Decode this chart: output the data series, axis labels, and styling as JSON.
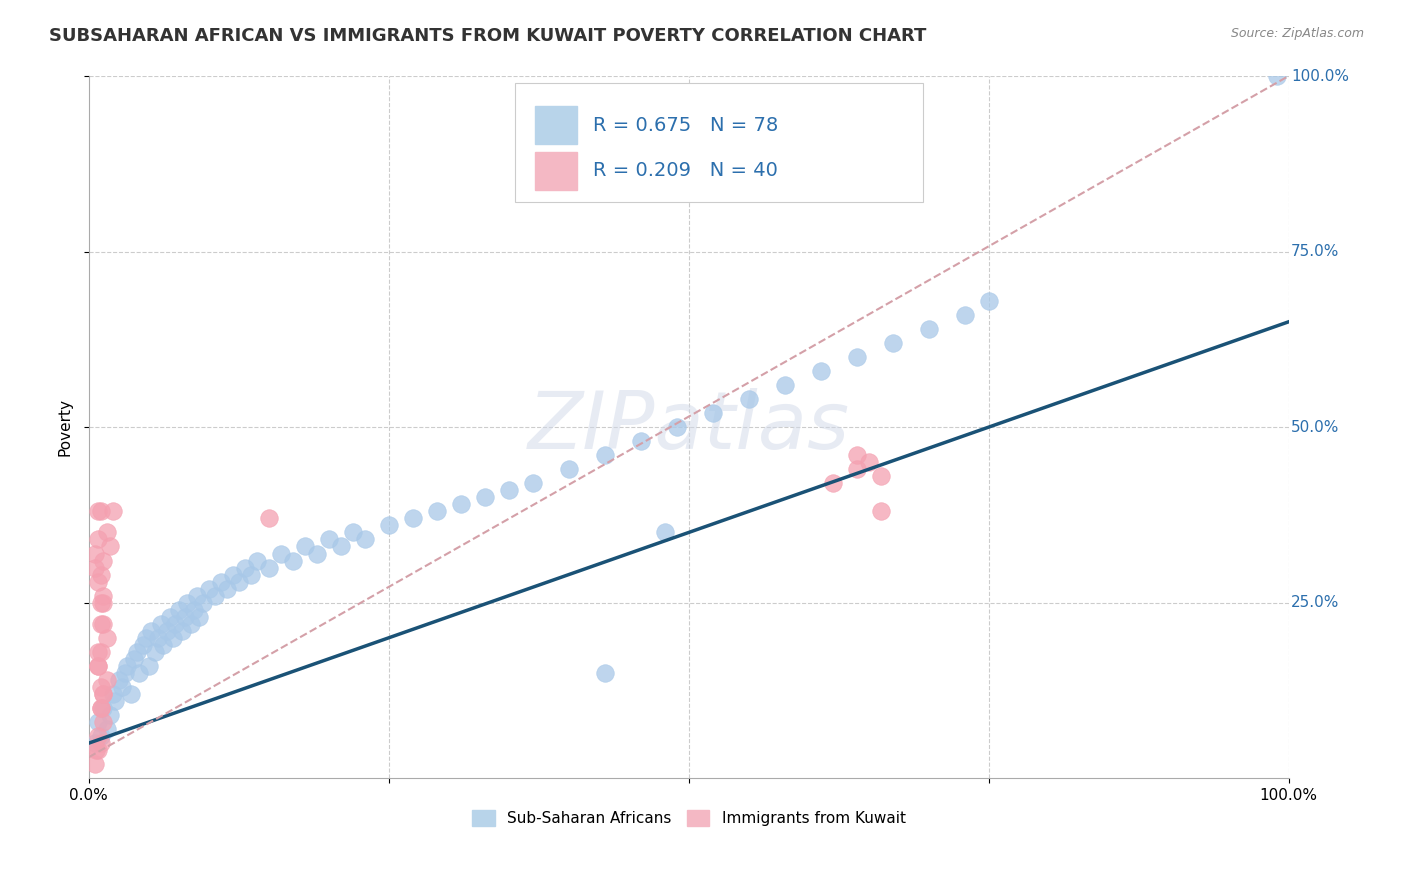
{
  "title": "SUBSAHARAN AFRICAN VS IMMIGRANTS FROM KUWAIT POVERTY CORRELATION CHART",
  "source": "Source: ZipAtlas.com",
  "ylabel": "Poverty",
  "xlim": [
    0,
    1
  ],
  "ylim": [
    0,
    1
  ],
  "blue_R": 0.675,
  "blue_N": 78,
  "pink_R": 0.209,
  "pink_N": 40,
  "blue_color": "#a8c8e8",
  "pink_color": "#f4a0b0",
  "blue_line_color": "#1a5276",
  "pink_line_color": "#d4a0a8",
  "background_color": "#ffffff",
  "grid_color": "#cccccc",
  "watermark": "ZIPatlas",
  "blue_scatter_x": [
    0.005,
    0.008,
    0.01,
    0.012,
    0.015,
    0.018,
    0.02,
    0.022,
    0.025,
    0.028,
    0.03,
    0.032,
    0.035,
    0.038,
    0.04,
    0.042,
    0.045,
    0.048,
    0.05,
    0.052,
    0.055,
    0.058,
    0.06,
    0.062,
    0.065,
    0.068,
    0.07,
    0.072,
    0.075,
    0.078,
    0.08,
    0.082,
    0.085,
    0.088,
    0.09,
    0.092,
    0.095,
    0.1,
    0.105,
    0.11,
    0.115,
    0.12,
    0.125,
    0.13,
    0.135,
    0.14,
    0.15,
    0.16,
    0.17,
    0.18,
    0.19,
    0.2,
    0.21,
    0.22,
    0.23,
    0.25,
    0.27,
    0.29,
    0.31,
    0.33,
    0.35,
    0.37,
    0.4,
    0.43,
    0.46,
    0.49,
    0.52,
    0.55,
    0.58,
    0.61,
    0.64,
    0.67,
    0.7,
    0.73,
    0.75,
    0.48,
    0.43,
    0.99
  ],
  "blue_scatter_y": [
    0.05,
    0.08,
    0.06,
    0.1,
    0.07,
    0.09,
    0.12,
    0.11,
    0.14,
    0.13,
    0.15,
    0.16,
    0.12,
    0.17,
    0.18,
    0.15,
    0.19,
    0.2,
    0.16,
    0.21,
    0.18,
    0.2,
    0.22,
    0.19,
    0.21,
    0.23,
    0.2,
    0.22,
    0.24,
    0.21,
    0.23,
    0.25,
    0.22,
    0.24,
    0.26,
    0.23,
    0.25,
    0.27,
    0.26,
    0.28,
    0.27,
    0.29,
    0.28,
    0.3,
    0.29,
    0.31,
    0.3,
    0.32,
    0.31,
    0.33,
    0.32,
    0.34,
    0.33,
    0.35,
    0.34,
    0.36,
    0.37,
    0.38,
    0.39,
    0.4,
    0.41,
    0.42,
    0.44,
    0.46,
    0.48,
    0.5,
    0.52,
    0.54,
    0.56,
    0.58,
    0.6,
    0.62,
    0.64,
    0.66,
    0.68,
    0.35,
    0.15,
    1.0
  ],
  "pink_scatter_x": [
    0.005,
    0.008,
    0.01,
    0.012,
    0.008,
    0.01,
    0.012,
    0.015,
    0.01,
    0.012,
    0.008,
    0.01,
    0.012,
    0.015,
    0.008,
    0.01,
    0.005,
    0.008,
    0.01,
    0.012,
    0.008,
    0.006,
    0.01,
    0.012,
    0.015,
    0.008,
    0.01,
    0.018,
    0.012,
    0.02,
    0.005,
    0.008,
    0.15,
    0.01,
    0.62,
    0.64,
    0.66,
    0.64,
    0.66,
    0.65
  ],
  "pink_scatter_y": [
    0.32,
    0.34,
    0.29,
    0.31,
    0.38,
    0.1,
    0.12,
    0.2,
    0.22,
    0.25,
    0.18,
    0.13,
    0.26,
    0.35,
    0.16,
    0.38,
    0.3,
    0.28,
    0.05,
    0.08,
    0.06,
    0.04,
    0.1,
    0.12,
    0.14,
    0.16,
    0.18,
    0.33,
    0.22,
    0.38,
    0.02,
    0.04,
    0.37,
    0.25,
    0.42,
    0.44,
    0.38,
    0.46,
    0.43,
    0.45
  ],
  "blue_line_x0": 0.0,
  "blue_line_y0": 0.05,
  "blue_line_x1": 1.0,
  "blue_line_y1": 0.65,
  "pink_line_x0": 0.0,
  "pink_line_y0": 0.03,
  "pink_line_x1": 1.0,
  "pink_line_y1": 1.0
}
